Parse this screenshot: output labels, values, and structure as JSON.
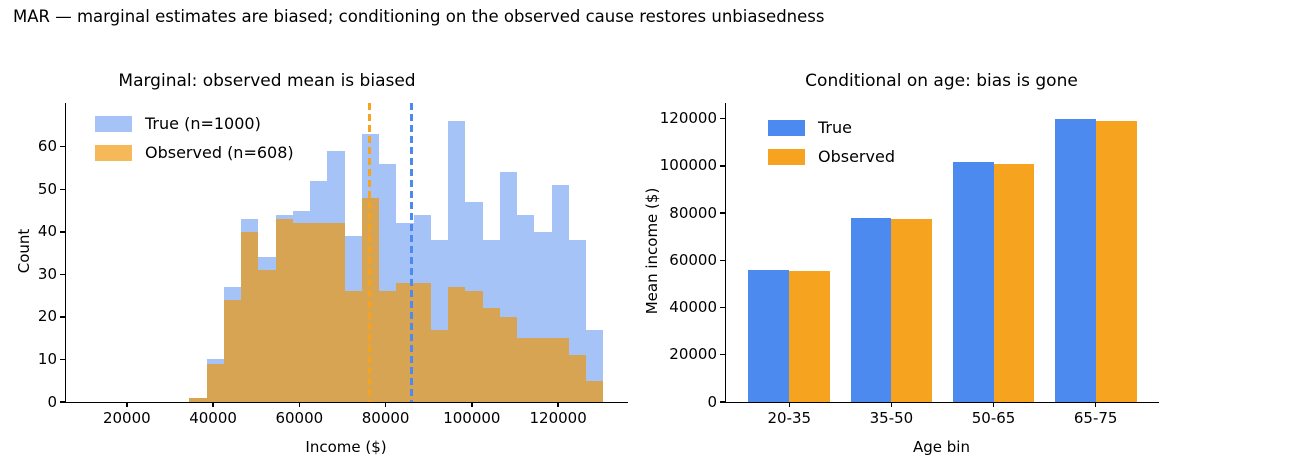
{
  "suptitle": "MAR — marginal estimates are biased; conditioning on the observed cause restores unbiasedness",
  "colors": {
    "solid_blue": "#4d8af0",
    "solid_orange": "#f6a41f",
    "hist_blue": "#a6c3f7",
    "hist_orange": "#f5b95a",
    "hist_overlap": "#d6a452",
    "axis": "#000000"
  },
  "charts": {
    "left": {
      "title": "Marginal: observed mean is biased",
      "xlabel": "Income ($)",
      "ylabel": "Count",
      "legend": [
        "True (n=1000)",
        "Observed (n=608)"
      ]
    },
    "right": {
      "title": "Conditional on age: bias is gone",
      "xlabel": "Age bin",
      "ylabel": "Mean income ($)",
      "legend": [
        "True",
        "Observed"
      ]
    }
  },
  "chart_data": [
    {
      "type": "histogram",
      "title": "Marginal: observed mean is biased",
      "xlabel": "Income ($)",
      "ylabel": "Count",
      "legend_position": "upper left",
      "bin_start": 34500,
      "bin_width": 4000,
      "series": [
        {
          "name": "True (n=1000)",
          "counts": [
            1,
            10,
            27,
            43,
            34,
            44,
            45,
            52,
            59,
            39,
            63,
            56,
            42,
            44,
            38,
            66,
            47,
            38,
            54,
            44,
            40,
            51,
            38,
            17
          ]
        },
        {
          "name": "Observed (n=608)",
          "counts": [
            1,
            9,
            24,
            40,
            31,
            43,
            42,
            42,
            42,
            26,
            48,
            26,
            28,
            28,
            17,
            27,
            26,
            22,
            20,
            15,
            15,
            15,
            11,
            5
          ]
        }
      ],
      "mean_lines": [
        {
          "name": "observed-mean-line",
          "value": 76300,
          "color_key": "solid_orange"
        },
        {
          "name": "true-mean-line",
          "value": 86000,
          "color_key": "solid_blue"
        }
      ],
      "xlim": [
        5900,
        136200
      ],
      "ylim": [
        0,
        70.3
      ],
      "xticks": [
        20000,
        40000,
        60000,
        80000,
        100000,
        120000
      ],
      "xtick_labels": [
        "20000",
        "40000",
        "60000",
        "80000",
        "100000",
        "120000"
      ],
      "yticks": [
        0,
        10,
        20,
        30,
        40,
        50,
        60
      ],
      "ytick_labels": [
        "0",
        "10",
        "20",
        "30",
        "40",
        "50",
        "60"
      ],
      "grid": false
    },
    {
      "type": "bar",
      "title": "Conditional on age: bias is gone",
      "xlabel": "Age bin",
      "ylabel": "Mean income ($)",
      "legend_position": "upper left",
      "categories": [
        "20-35",
        "35-50",
        "50-65",
        "65-75"
      ],
      "series": [
        {
          "name": "True",
          "values": [
            56000,
            78000,
            101500,
            119800
          ]
        },
        {
          "name": "Observed",
          "values": [
            55500,
            77400,
            100700,
            118800
          ]
        }
      ],
      "bar_width": 0.4,
      "xlim": [
        -0.62,
        3.62
      ],
      "ylim": [
        0,
        126600
      ],
      "yticks": [
        0,
        20000,
        40000,
        60000,
        80000,
        100000,
        120000
      ],
      "ytick_labels": [
        "0",
        "20000",
        "40000",
        "60000",
        "80000",
        "100000",
        "120000"
      ],
      "grid": false
    }
  ]
}
